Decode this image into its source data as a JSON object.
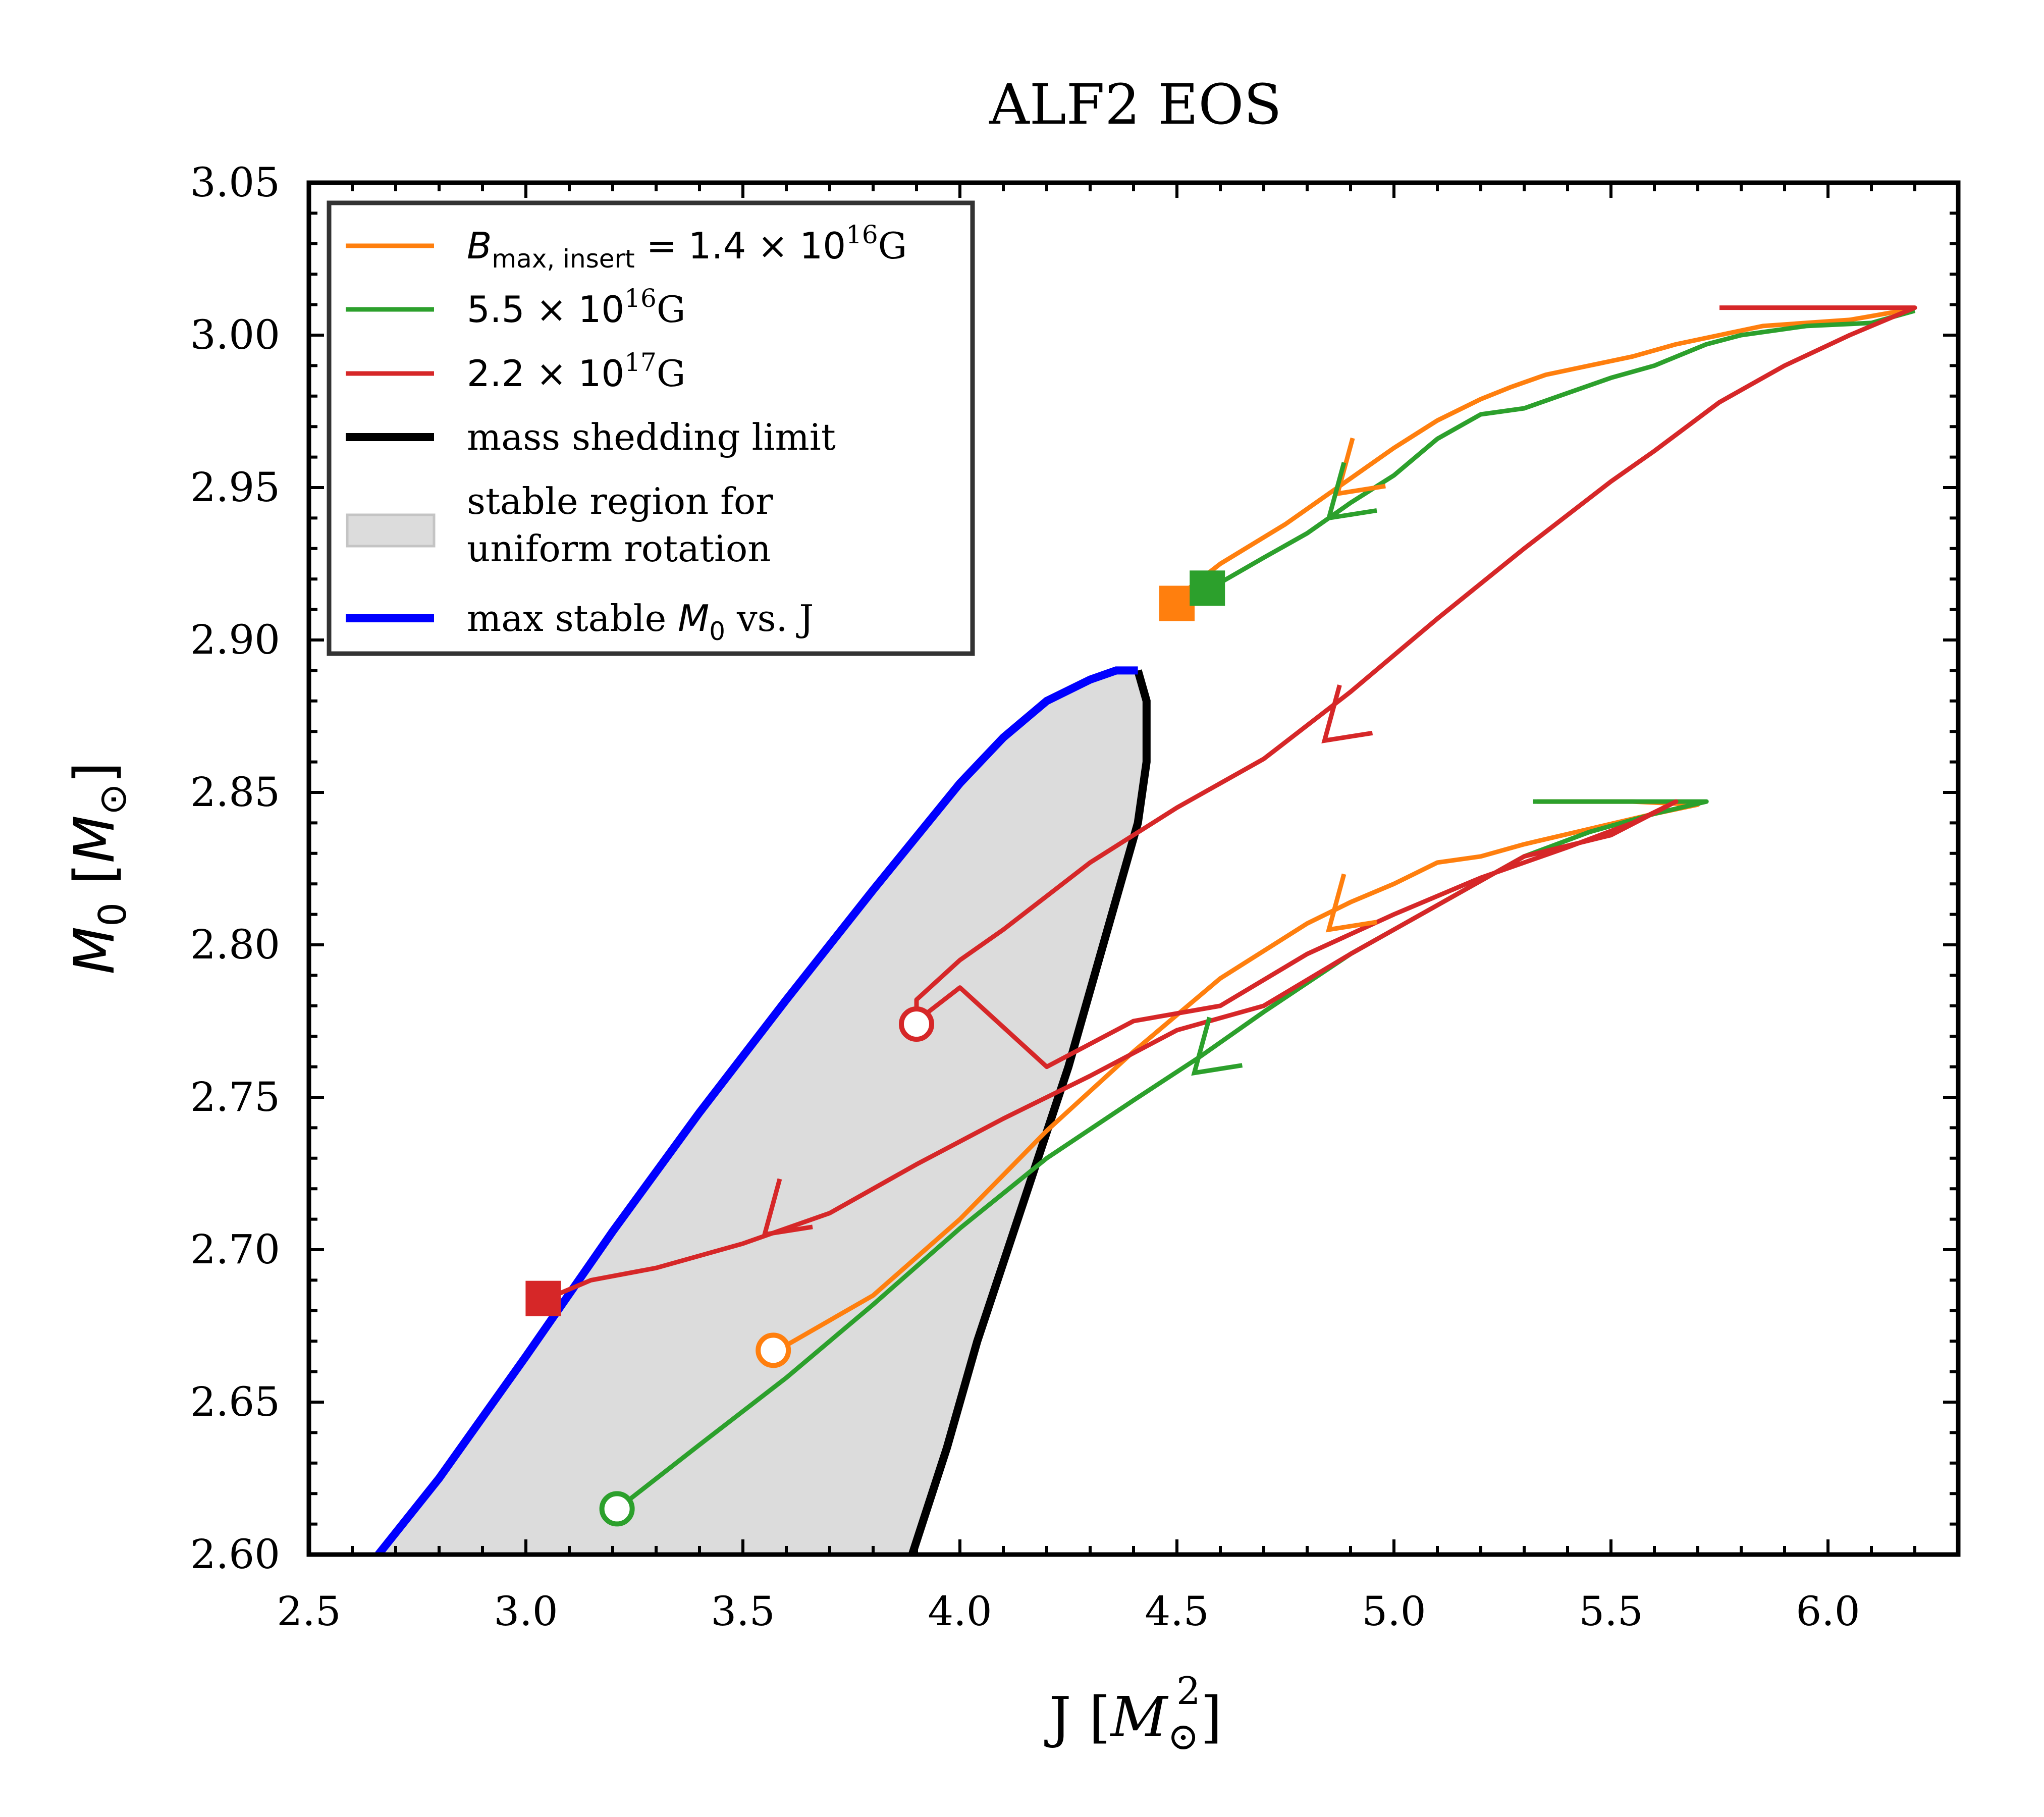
{
  "chart_data": {
    "type": "line",
    "title": "ALF2 EOS",
    "xlabel": "J",
    "xlabel_unit_base": "M",
    "xlabel_unit_sub": "⊙",
    "xlabel_unit_sup": "2",
    "ylabel_base": "M",
    "ylabel_sub": "0",
    "ylabel_unit_base": "M",
    "ylabel_unit_sub": "⊙",
    "xlim": [
      2.5,
      6.3
    ],
    "ylim": [
      2.6,
      3.05
    ],
    "xticks": [
      "2.5",
      "3.0",
      "3.5",
      "4.0",
      "4.5",
      "5.0",
      "5.5",
      "6.0"
    ],
    "yticks": [
      "2.60",
      "2.65",
      "2.70",
      "2.75",
      "2.80",
      "2.85",
      "2.90",
      "2.95",
      "3.00",
      "3.05"
    ],
    "legend": {
      "placement": "top-left",
      "entries": [
        {
          "label_prefix_base": "B",
          "label_prefix_sub": "max, insert",
          "label_math": " = 1.4 × 10",
          "label_sup": "16",
          "label_suffix": "G",
          "color": "#ff7f0e",
          "kind": "line"
        },
        {
          "label_math": "5.5 × 10",
          "label_sup": "16",
          "label_suffix": "G",
          "color": "#2ca02c",
          "kind": "line"
        },
        {
          "label_math": "2.2 × 10",
          "label_sup": "17",
          "label_suffix": "G",
          "color": "#d62728",
          "kind": "line"
        },
        {
          "label": "mass shedding limit",
          "color": "#000000",
          "kind": "line"
        },
        {
          "label_line1": "stable region for",
          "label_line2": "uniform rotation",
          "color": "#dcdcdc",
          "kind": "patch"
        },
        {
          "label_prefix": "max stable ",
          "label_sym_base": "M",
          "label_sym_sub": "0",
          "label_suffix": " vs. J",
          "color": "#0000ff",
          "kind": "line"
        }
      ]
    },
    "mass_shedding_limit": {
      "color": "#000000",
      "x": [
        4.41,
        4.43,
        4.43,
        4.41,
        4.37,
        4.31,
        4.25,
        4.18,
        4.11,
        4.04,
        3.97,
        3.89
      ],
      "y": [
        2.89,
        2.88,
        2.86,
        2.84,
        2.82,
        2.79,
        2.76,
        2.73,
        2.7,
        2.67,
        2.635,
        2.6
      ]
    },
    "max_stable_M0": {
      "color": "#0000ff",
      "x": [
        2.66,
        2.8,
        3.0,
        3.2,
        3.4,
        3.6,
        3.8,
        4.0,
        4.1,
        4.2,
        4.3,
        4.36,
        4.41
      ],
      "y": [
        2.6,
        2.625,
        2.665,
        2.706,
        2.745,
        2.782,
        2.818,
        2.853,
        2.868,
        2.88,
        2.887,
        2.89,
        2.89
      ]
    },
    "series": [
      {
        "name": "B=1.4e16G upper",
        "color": "#ff7f0e",
        "x": [
          4.51,
          4.6,
          4.75,
          4.9,
          5.0,
          5.1,
          5.2,
          5.27,
          5.35,
          5.45,
          5.55,
          5.65,
          5.75,
          5.85,
          5.95,
          6.05,
          6.17,
          6.05,
          5.85
        ],
        "y": [
          2.915,
          2.925,
          2.938,
          2.953,
          2.963,
          2.972,
          2.979,
          2.983,
          2.987,
          2.99,
          2.993,
          2.997,
          3.0,
          3.003,
          3.004,
          3.005,
          3.008,
          3.005,
          3.003
        ]
      },
      {
        "name": "B=1.4e16G lower",
        "color": "#ff7f0e",
        "x": [
          5.33,
          5.55,
          5.7,
          5.6,
          5.45,
          5.3,
          5.2,
          5.1,
          5.0,
          4.9,
          4.8,
          4.6,
          4.4,
          4.2,
          4.0,
          3.8,
          3.58
        ],
        "y": [
          2.847,
          2.847,
          2.846,
          2.843,
          2.838,
          2.833,
          2.829,
          2.827,
          2.82,
          2.814,
          2.807,
          2.789,
          2.765,
          2.739,
          2.71,
          2.685,
          2.667
        ]
      },
      {
        "name": "B=5.5e16G upper",
        "color": "#2ca02c",
        "x": [
          4.59,
          4.7,
          4.8,
          4.9,
          5.0,
          5.1,
          5.2,
          5.3,
          5.4,
          5.5,
          5.6,
          5.72,
          5.8,
          5.95,
          6.1,
          6.2
        ],
        "y": [
          2.918,
          2.927,
          2.935,
          2.945,
          2.954,
          2.966,
          2.974,
          2.976,
          2.981,
          2.986,
          2.99,
          2.997,
          3.0,
          3.003,
          3.004,
          3.008
        ]
      },
      {
        "name": "B=5.5e16G lower",
        "color": "#2ca02c",
        "x": [
          5.32,
          5.55,
          5.72,
          5.6,
          5.45,
          5.3,
          5.1,
          4.9,
          4.7,
          4.55,
          4.4,
          4.2,
          4.0,
          3.8,
          3.6,
          3.4,
          3.22
        ],
        "y": [
          2.847,
          2.847,
          2.847,
          2.843,
          2.837,
          2.829,
          2.813,
          2.797,
          2.778,
          2.763,
          2.749,
          2.73,
          2.707,
          2.682,
          2.658,
          2.636,
          2.616
        ]
      },
      {
        "name": "B=2.2e17G",
        "color": "#d62728",
        "x": [
          5.75,
          5.95,
          6.2,
          6.05,
          5.9,
          5.75,
          5.6,
          5.5,
          5.3,
          5.1,
          4.9,
          4.7,
          4.5,
          4.3,
          4.2,
          4.1,
          4.0,
          3.9,
          3.9,
          4.0,
          4.2,
          4.4,
          4.6,
          4.8,
          5.0,
          5.2,
          5.4,
          5.55,
          5.65,
          5.5,
          5.3,
          5.1,
          4.9,
          4.7,
          4.5,
          4.3,
          4.1,
          3.9,
          3.7,
          3.5,
          3.3,
          3.15,
          3.05
        ],
        "y": [
          3.009,
          3.009,
          3.009,
          3.0,
          2.99,
          2.978,
          2.962,
          2.952,
          2.93,
          2.907,
          2.883,
          2.861,
          2.845,
          2.827,
          2.816,
          2.805,
          2.795,
          2.782,
          2.775,
          2.786,
          2.76,
          2.775,
          2.78,
          2.797,
          2.81,
          2.822,
          2.832,
          2.84,
          2.847,
          2.836,
          2.829,
          2.813,
          2.797,
          2.78,
          2.772,
          2.757,
          2.743,
          2.728,
          2.712,
          2.702,
          2.694,
          2.69,
          2.684
        ]
      }
    ],
    "markers": [
      {
        "kind": "square",
        "color": "#ff7f0e",
        "x": 4.5,
        "y": 2.912
      },
      {
        "kind": "square",
        "color": "#2ca02c",
        "x": 4.57,
        "y": 2.917
      },
      {
        "kind": "square",
        "color": "#d62728",
        "x": 3.04,
        "y": 2.684
      },
      {
        "kind": "open-circle",
        "color": "#d62728",
        "x": 3.9,
        "y": 2.774
      },
      {
        "kind": "open-circle",
        "color": "#ff7f0e",
        "x": 3.57,
        "y": 2.667
      },
      {
        "kind": "open-circle",
        "color": "#2ca02c",
        "x": 3.21,
        "y": 2.615
      }
    ],
    "arrows": [
      {
        "color": "#ff7f0e",
        "x": 4.87,
        "y": 2.948
      },
      {
        "color": "#2ca02c",
        "x": 4.85,
        "y": 2.94
      },
      {
        "color": "#d62728",
        "x": 4.84,
        "y": 2.867
      },
      {
        "color": "#ff7f0e",
        "x": 4.85,
        "y": 2.805
      },
      {
        "color": "#2ca02c",
        "x": 4.54,
        "y": 2.758
      },
      {
        "color": "#d62728",
        "x": 3.55,
        "y": 2.705
      }
    ]
  }
}
